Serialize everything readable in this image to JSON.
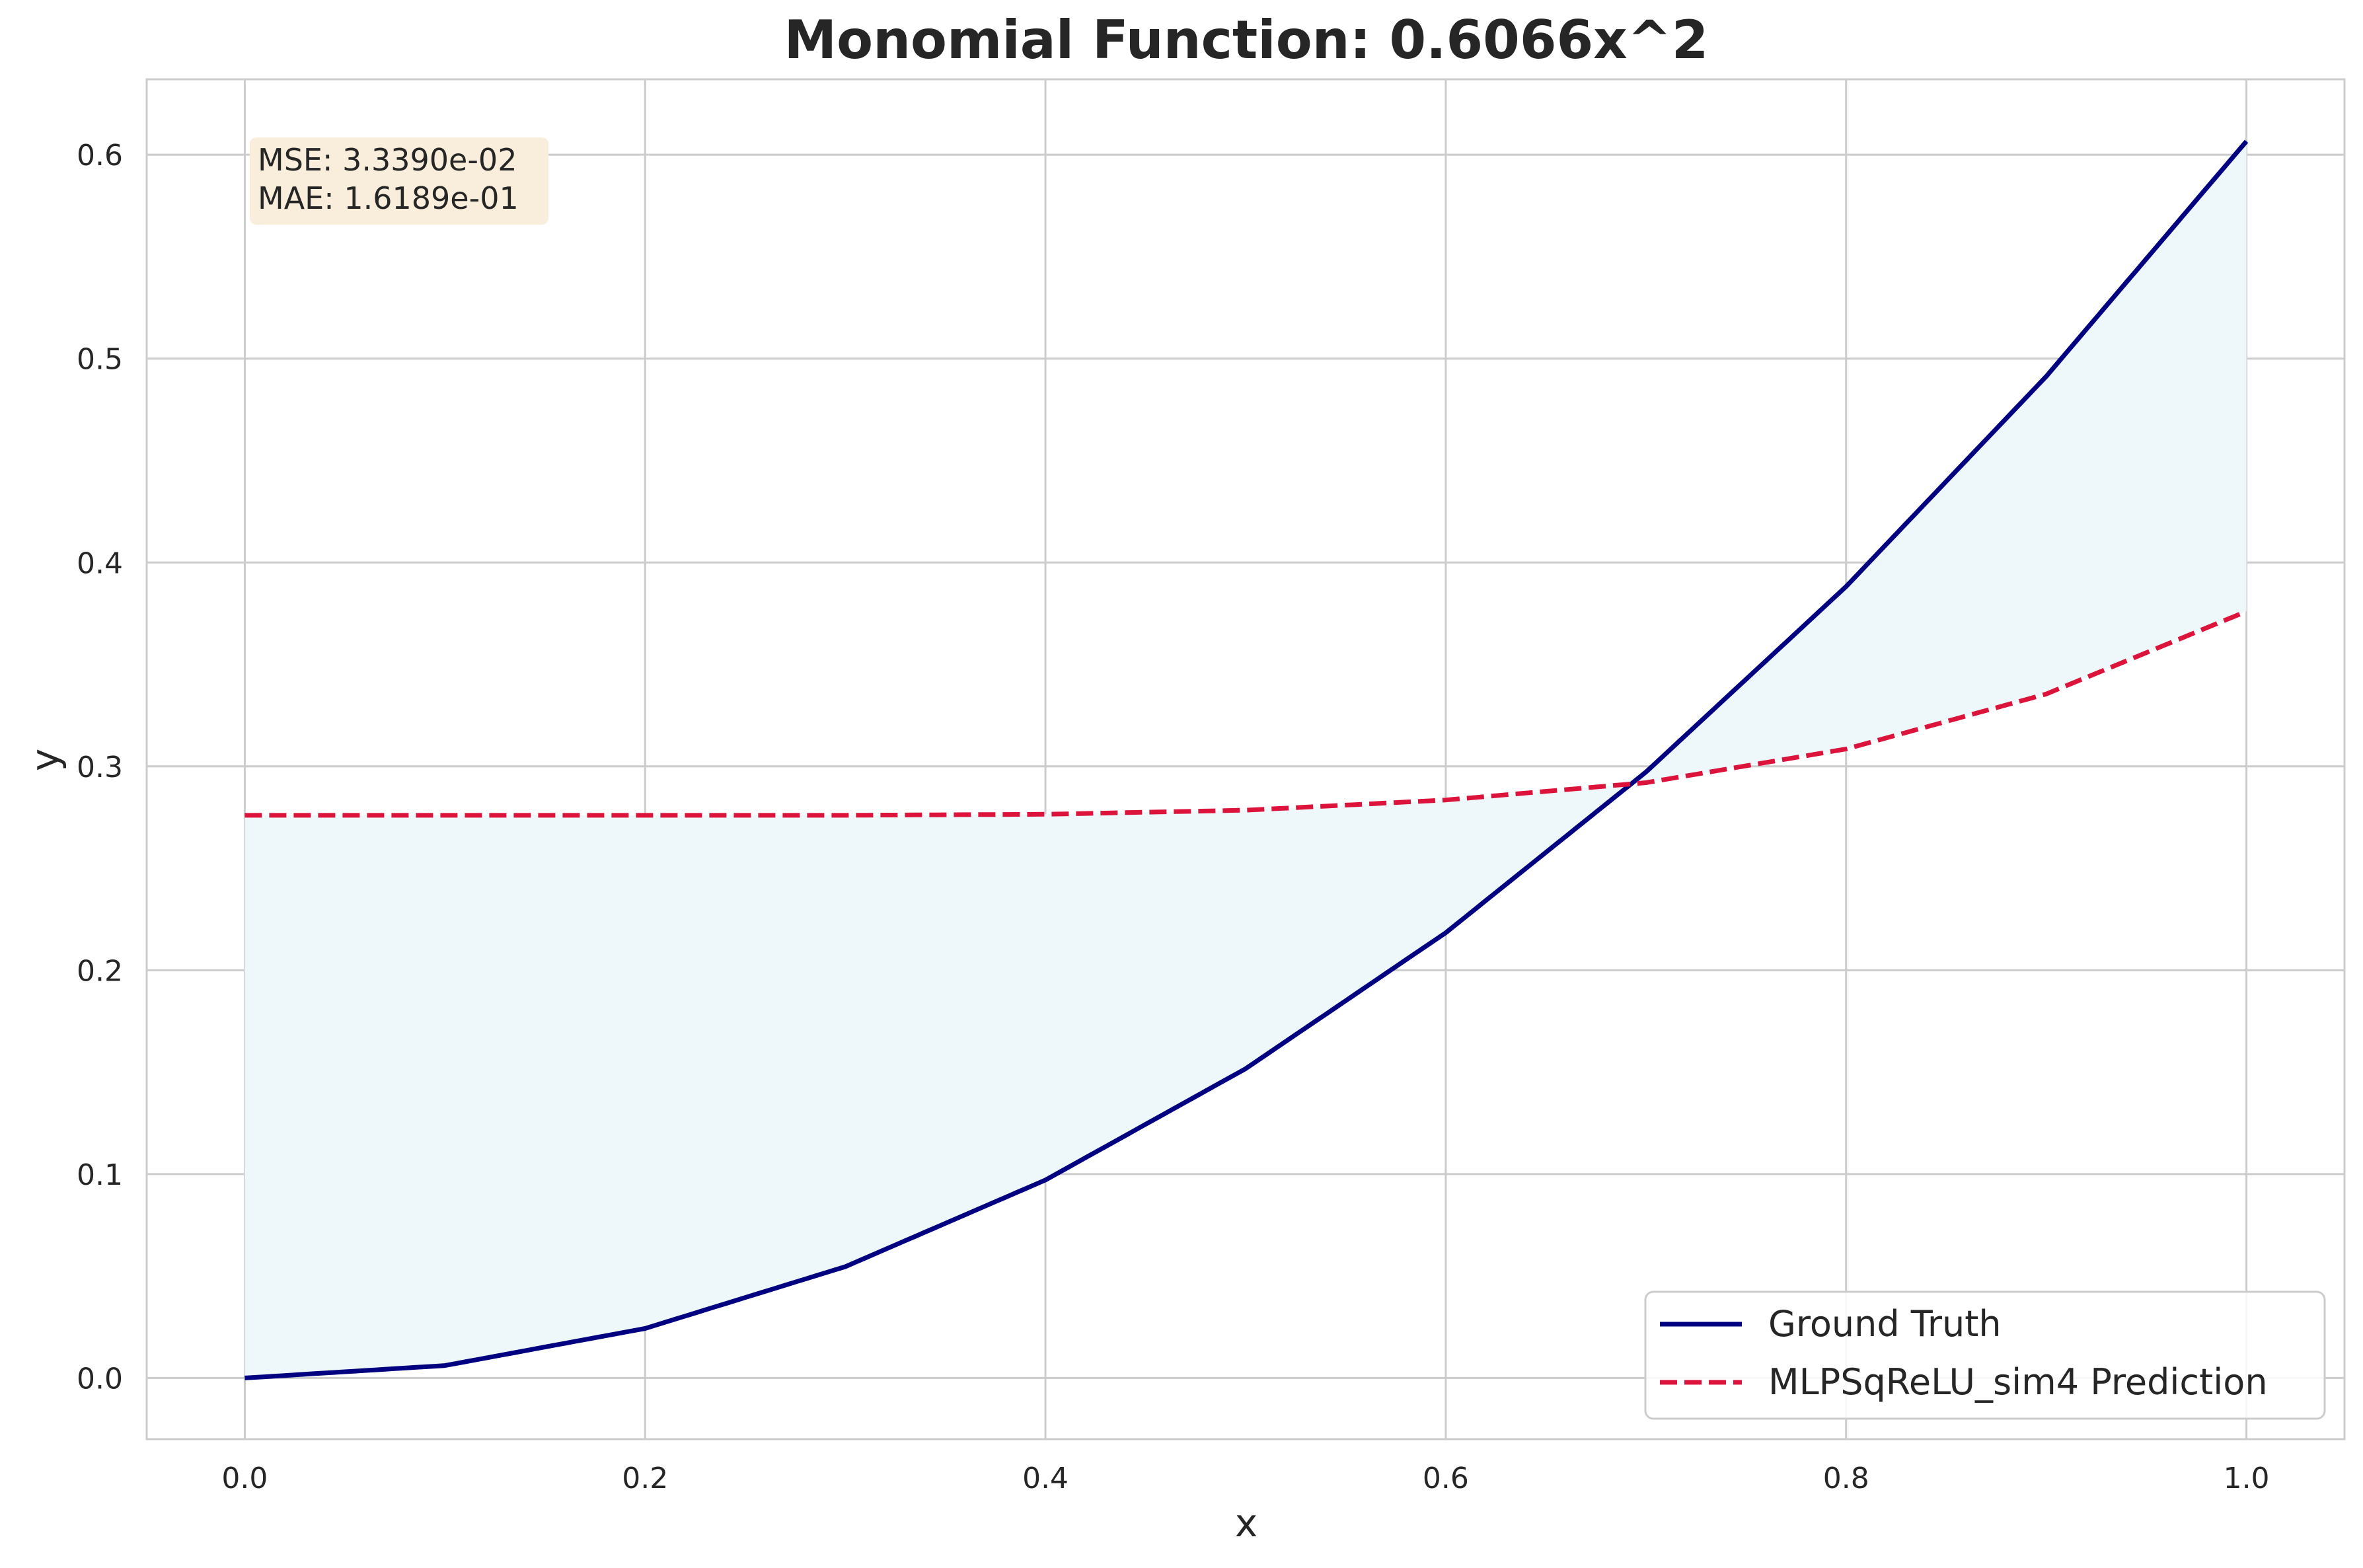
{
  "chart_data": {
    "type": "line",
    "title": "Monomial Function: 0.6066x^2",
    "xlabel": "x",
    "ylabel": "y",
    "xlim": [
      -0.049,
      1.049
    ],
    "ylim": [
      -0.03,
      0.637
    ],
    "xticks": [
      0.0,
      0.2,
      0.4,
      0.6,
      0.8,
      1.0
    ],
    "xtick_labels": [
      "0.0",
      "0.2",
      "0.4",
      "0.6",
      "0.8",
      "1.0"
    ],
    "yticks": [
      0.0,
      0.1,
      0.2,
      0.3,
      0.4,
      0.5,
      0.6
    ],
    "ytick_labels": [
      "0.0",
      "0.1",
      "0.2",
      "0.3",
      "0.4",
      "0.5",
      "0.6"
    ],
    "grid": true,
    "legend_position": "lower-right",
    "annotation": {
      "lines": [
        "MSE: 3.3390e-02",
        "MAE: 1.6189e-01"
      ],
      "position": "top-left"
    },
    "fill_between": {
      "between": [
        "Ground Truth",
        "MLPSqReLU_sim4 Prediction"
      ],
      "color": "#eef7fa"
    },
    "series": [
      {
        "name": "Ground Truth",
        "style": "solid",
        "color": "#000080",
        "x": [
          0.0,
          0.1,
          0.2,
          0.3,
          0.4,
          0.5,
          0.6,
          0.7,
          0.8,
          0.9,
          1.0
        ],
        "y": [
          0.0,
          0.0061,
          0.0243,
          0.0546,
          0.0971,
          0.1517,
          0.2184,
          0.2972,
          0.3882,
          0.4913,
          0.6066
        ]
      },
      {
        "name": "MLPSqReLU_sim4 Prediction",
        "style": "dashed",
        "color": "#dc143c",
        "x": [
          0.0,
          0.1,
          0.2,
          0.3,
          0.4,
          0.5,
          0.6,
          0.7,
          0.8,
          0.9,
          1.0
        ],
        "y": [
          0.276,
          0.276,
          0.276,
          0.276,
          0.2765,
          0.2785,
          0.2835,
          0.292,
          0.3085,
          0.3355,
          0.376
        ]
      }
    ]
  }
}
